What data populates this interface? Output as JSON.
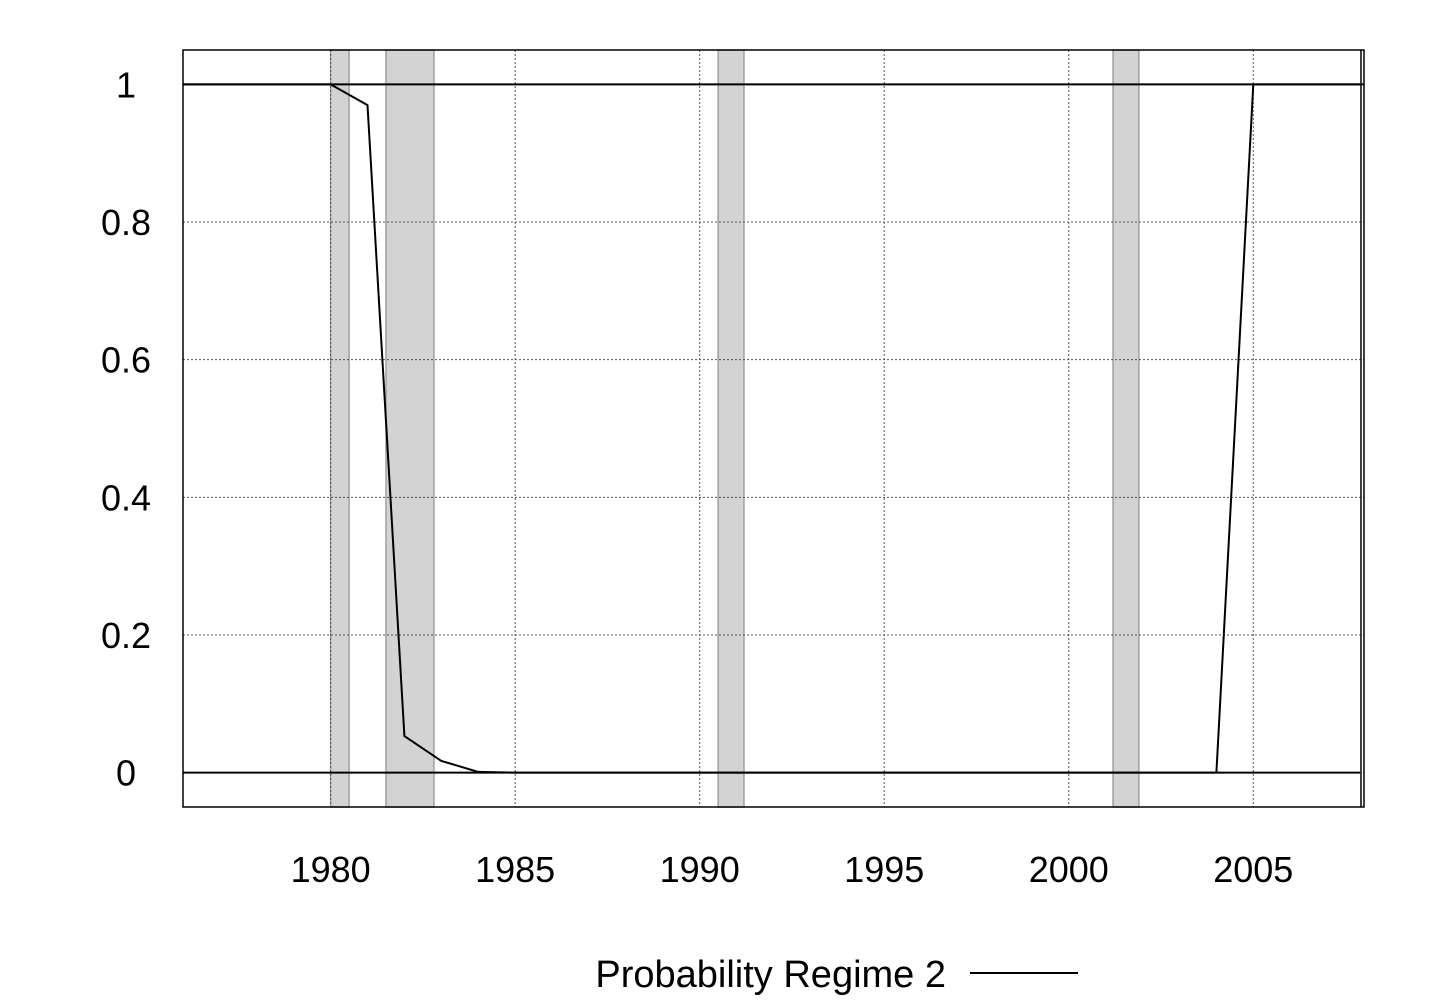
{
  "chart_data": {
    "type": "line",
    "title": "",
    "xlabel": "",
    "ylabel": "",
    "xlim": [
      1976,
      2008
    ],
    "ylim": [
      -0.05,
      1.05
    ],
    "grid": true,
    "x_ticks": [
      1980,
      1985,
      1990,
      1995,
      2000,
      2005
    ],
    "y_ticks": [
      0,
      0.2,
      0.4,
      0.6,
      0.8,
      1
    ],
    "y_tick_labels": [
      "0",
      "0.2",
      "0.4",
      "0.6",
      "0.8",
      "1"
    ],
    "reference_lines": [
      0,
      1
    ],
    "shaded_periods": [
      {
        "start": 1980.0,
        "end": 1980.5
      },
      {
        "start": 1981.5,
        "end": 1982.8
      },
      {
        "start": 1990.5,
        "end": 1991.2
      },
      {
        "start": 2001.2,
        "end": 2001.9
      }
    ],
    "series": [
      {
        "name": "Probability Regime 2",
        "color": "#000000",
        "x": [
          1976,
          1980,
          1981,
          1982,
          1983,
          1984,
          1985,
          1986,
          1987,
          1988,
          1989,
          1990,
          1991,
          1992,
          1993,
          1994,
          1995,
          1996,
          1997,
          1998,
          1999,
          2000,
          2001,
          2002,
          2003,
          2004,
          2005,
          2006,
          2007,
          2008
        ],
        "y": [
          1,
          1,
          0.97,
          0.053,
          0.017,
          0.001,
          0,
          0,
          0,
          0,
          0,
          0,
          0,
          0,
          0,
          0,
          0,
          0,
          0,
          0,
          0,
          0,
          0,
          0,
          0,
          0,
          1,
          1,
          1,
          1
        ]
      }
    ],
    "legend": {
      "position": "bottom-center",
      "entries": [
        "Probability Regime 2"
      ]
    }
  },
  "colors": {
    "shade": "#d3d3d3",
    "shade_edge": "#a0a0a0",
    "grid": "#555555",
    "axis": "#000000"
  }
}
